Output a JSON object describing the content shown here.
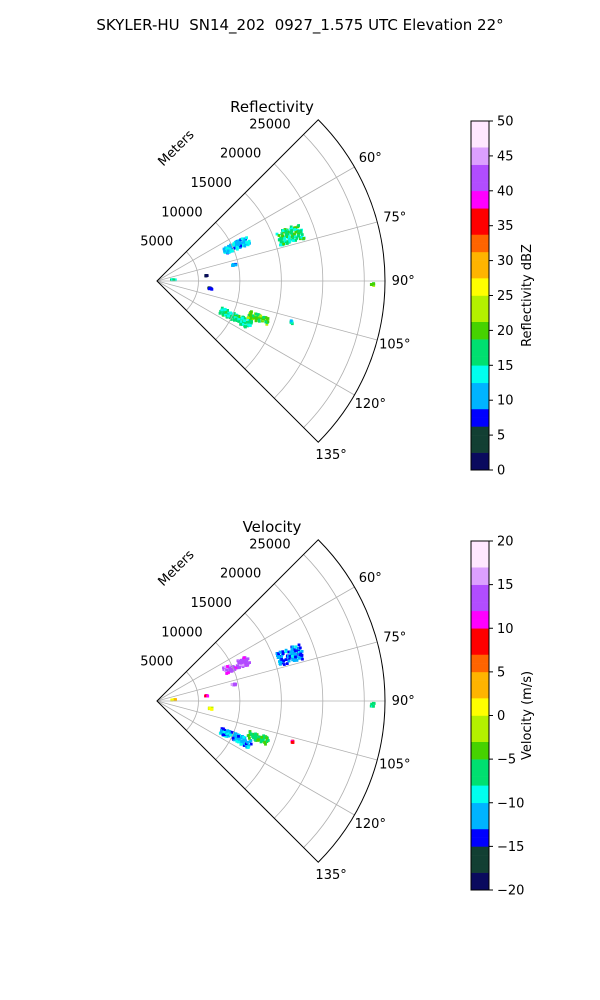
{
  "figure_title": "SKYLER-HU  SN14_202  0927_1.575 UTC Elevation 22°",
  "chart_data": [
    {
      "type": "polar-sector",
      "title": "Reflectivity",
      "radial_label": "Meters",
      "radial_ticks": [
        5000,
        10000,
        15000,
        20000,
        25000
      ],
      "radial_max": 27500,
      "angle_range_deg": [
        45,
        135
      ],
      "angle_ticks": [
        "60°",
        "75°",
        "90°",
        "105°",
        "120°",
        "135°"
      ],
      "angle_tick_values": [
        60,
        75,
        90,
        105,
        120,
        135
      ],
      "colorbar": {
        "label": "Reflectivity dBZ",
        "min": 0,
        "max": 50,
        "ticks": [
          "0",
          "5",
          "10",
          "15",
          "20",
          "25",
          "30",
          "35",
          "40",
          "45",
          "50"
        ]
      },
      "echo_regions": [
        {
          "angle_deg": 66,
          "range_m": 10500,
          "span_deg": 5,
          "span_m": 3200,
          "value": 12
        },
        {
          "angle_deg": 71,
          "range_m": 17000,
          "span_deg": 6,
          "span_m": 3000,
          "value": 17
        },
        {
          "angle_deg": 115,
          "range_m": 10500,
          "span_deg": 5,
          "span_m": 4000,
          "value": 16
        },
        {
          "angle_deg": 110,
          "range_m": 13000,
          "span_deg": 4,
          "span_m": 2500,
          "value": 20
        },
        {
          "angle_deg": 91,
          "range_m": 26000,
          "span_deg": 1,
          "span_m": 400,
          "value": 20
        },
        {
          "angle_deg": 98,
          "range_m": 6500,
          "span_deg": 1.5,
          "span_m": 700,
          "value": 7
        },
        {
          "angle_deg": 84,
          "range_m": 6000,
          "span_deg": 1,
          "span_m": 300,
          "value": 4
        },
        {
          "angle_deg": 78,
          "range_m": 9500,
          "span_deg": 1,
          "span_m": 500,
          "value": 12
        },
        {
          "angle_deg": 86,
          "range_m": 2000,
          "span_deg": 2,
          "span_m": 600,
          "value": 14
        },
        {
          "angle_deg": 107,
          "range_m": 17000,
          "span_deg": 1,
          "span_m": 300,
          "value": 14
        }
      ]
    },
    {
      "type": "polar-sector",
      "title": "Velocity",
      "radial_label": "Meters",
      "radial_ticks": [
        5000,
        10000,
        15000,
        20000,
        25000
      ],
      "radial_max": 27500,
      "angle_range_deg": [
        45,
        135
      ],
      "angle_ticks": [
        "60°",
        "75°",
        "90°",
        "105°",
        "120°",
        "135°"
      ],
      "angle_tick_values": [
        60,
        75,
        90,
        105,
        120,
        135
      ],
      "colorbar": {
        "label": "Velocity (m/s)",
        "min": -20,
        "max": 20,
        "ticks": [
          "−20",
          "−15",
          "−10",
          "−5",
          "0",
          "5",
          "10",
          "15",
          "20"
        ]
      },
      "echo_regions": [
        {
          "angle_deg": 66,
          "range_m": 10500,
          "span_deg": 5,
          "span_m": 3200,
          "value": 14
        },
        {
          "angle_deg": 71,
          "range_m": 17000,
          "span_deg": 6,
          "span_m": 3000,
          "value": -12
        },
        {
          "angle_deg": 115,
          "range_m": 10500,
          "span_deg": 5,
          "span_m": 4000,
          "value": -11
        },
        {
          "angle_deg": 110,
          "range_m": 13000,
          "span_deg": 4,
          "span_m": 2500,
          "value": -5
        },
        {
          "angle_deg": 91,
          "range_m": 26000,
          "span_deg": 1,
          "span_m": 400,
          "value": -7
        },
        {
          "angle_deg": 98,
          "range_m": 6500,
          "span_deg": 1.5,
          "span_m": 700,
          "value": 0
        },
        {
          "angle_deg": 84,
          "range_m": 6000,
          "span_deg": 1,
          "span_m": 300,
          "value": 12
        },
        {
          "angle_deg": 78,
          "range_m": 9500,
          "span_deg": 1,
          "span_m": 500,
          "value": 14
        },
        {
          "angle_deg": 86,
          "range_m": 2000,
          "span_deg": 2,
          "span_m": 600,
          "value": 1
        },
        {
          "angle_deg": 107,
          "range_m": 17000,
          "span_deg": 1,
          "span_m": 300,
          "value": 10
        }
      ]
    }
  ],
  "colors": {
    "stops": [
      "#0a0a5e",
      "#123f33",
      "#0000ff",
      "#00b4ff",
      "#00ffee",
      "#00e070",
      "#46d200",
      "#b4f000",
      "#ffff00",
      "#ffb400",
      "#ff6400",
      "#ff0000",
      "#ff00ff",
      "#b14dff",
      "#dca0ff",
      "#ffe8ff"
    ],
    "grid": "#b0b0b0",
    "frame": "#000000"
  }
}
